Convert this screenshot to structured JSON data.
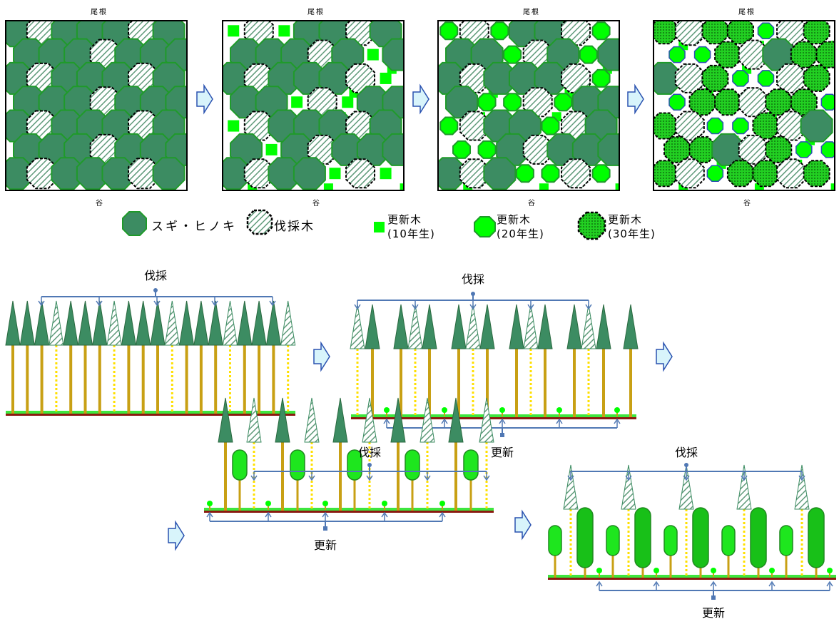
{
  "plan": {
    "ridge_label": "尾根",
    "valley_label": "谷",
    "stages": 4
  },
  "legend": {
    "sugi": "スギ・ヒノキ",
    "felled": "伐採木",
    "young10_line1": "更新木",
    "young10_line2": "(10年生)",
    "young20_line1": "更新木",
    "young20_line2": "(20年生)",
    "young30_line1": "更新木",
    "young30_line2": "(30年生)"
  },
  "profile": {
    "cut_label": "伐採",
    "regen_label": "更新"
  },
  "colors": {
    "sugi_fill": "#3c8c62",
    "sugi_stroke": "#1f9a2a",
    "felled_hatch": "#5f9a7a",
    "young_bright": "#00ff00",
    "young_mid": "#1ee61e",
    "young_dark": "#18c018",
    "trunk": "#c8a014",
    "ground_green": "#3ee63e",
    "ground_red": "#8a1a10",
    "bracket_blue": "#5078b4",
    "arrow_fill": "#d8f4fb",
    "arrow_stroke": "#2a52b0"
  }
}
